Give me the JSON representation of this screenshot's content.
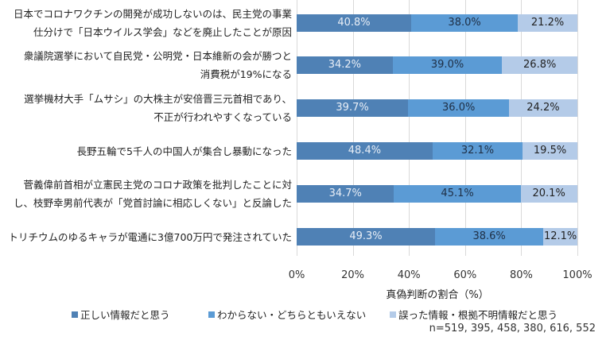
{
  "chart_data": {
    "type": "bar",
    "orientation": "horizontal",
    "stacked": true,
    "categories": [
      [
        "日本でコロナワクチンの開発が成功しないのは、民主党の事業",
        "仕分けで「日本ウイルス学会」などを廃止したことが原因"
      ],
      [
        "衆議院選挙において自民党・公明党・日本維新の会が勝つと",
        "消費税が19%になる"
      ],
      [
        "選挙機材大手「ムサシ」の大株主が安倍晋三元首相であり、",
        "不正が行われやすくなっている"
      ],
      [
        "長野五輪で5千人の中国人が集合し暴動になった"
      ],
      [
        "菅義偉前首相が立憲民主党のコロナ政策を批判したことに対",
        "し、枝野幸男前代表が「党首討論に相応しくない」と反論した"
      ],
      [
        "トリチウムのゆるキャラが電通に3億700万円で発注されていた"
      ]
    ],
    "series": [
      {
        "name": "正しい情報だと思う",
        "color": "#4f81b5",
        "label_color": "#e8eef6",
        "values": [
          40.8,
          34.2,
          39.7,
          48.4,
          34.7,
          49.3
        ]
      },
      {
        "name": "わからない・どちらともいえない",
        "color": "#5b9bd5",
        "label_color": "#1f2f45",
        "values": [
          38.0,
          39.0,
          36.0,
          32.1,
          45.1,
          38.6
        ]
      },
      {
        "name": "誤った情報・根拠不明情報だと思う",
        "color": "#b4cbe8",
        "label_color": "#222222",
        "values": [
          21.2,
          26.8,
          24.2,
          19.5,
          20.1,
          12.1
        ]
      }
    ],
    "xlabel": "真偽判断の割合（%）",
    "xlim": [
      0,
      100
    ],
    "xticks": [
      "0%",
      "20%",
      "40%",
      "60%",
      "80%",
      "100%"
    ],
    "grid": true,
    "legend_position": "bottom",
    "note": "n=519, 395, 458, 380, 616, 552"
  }
}
